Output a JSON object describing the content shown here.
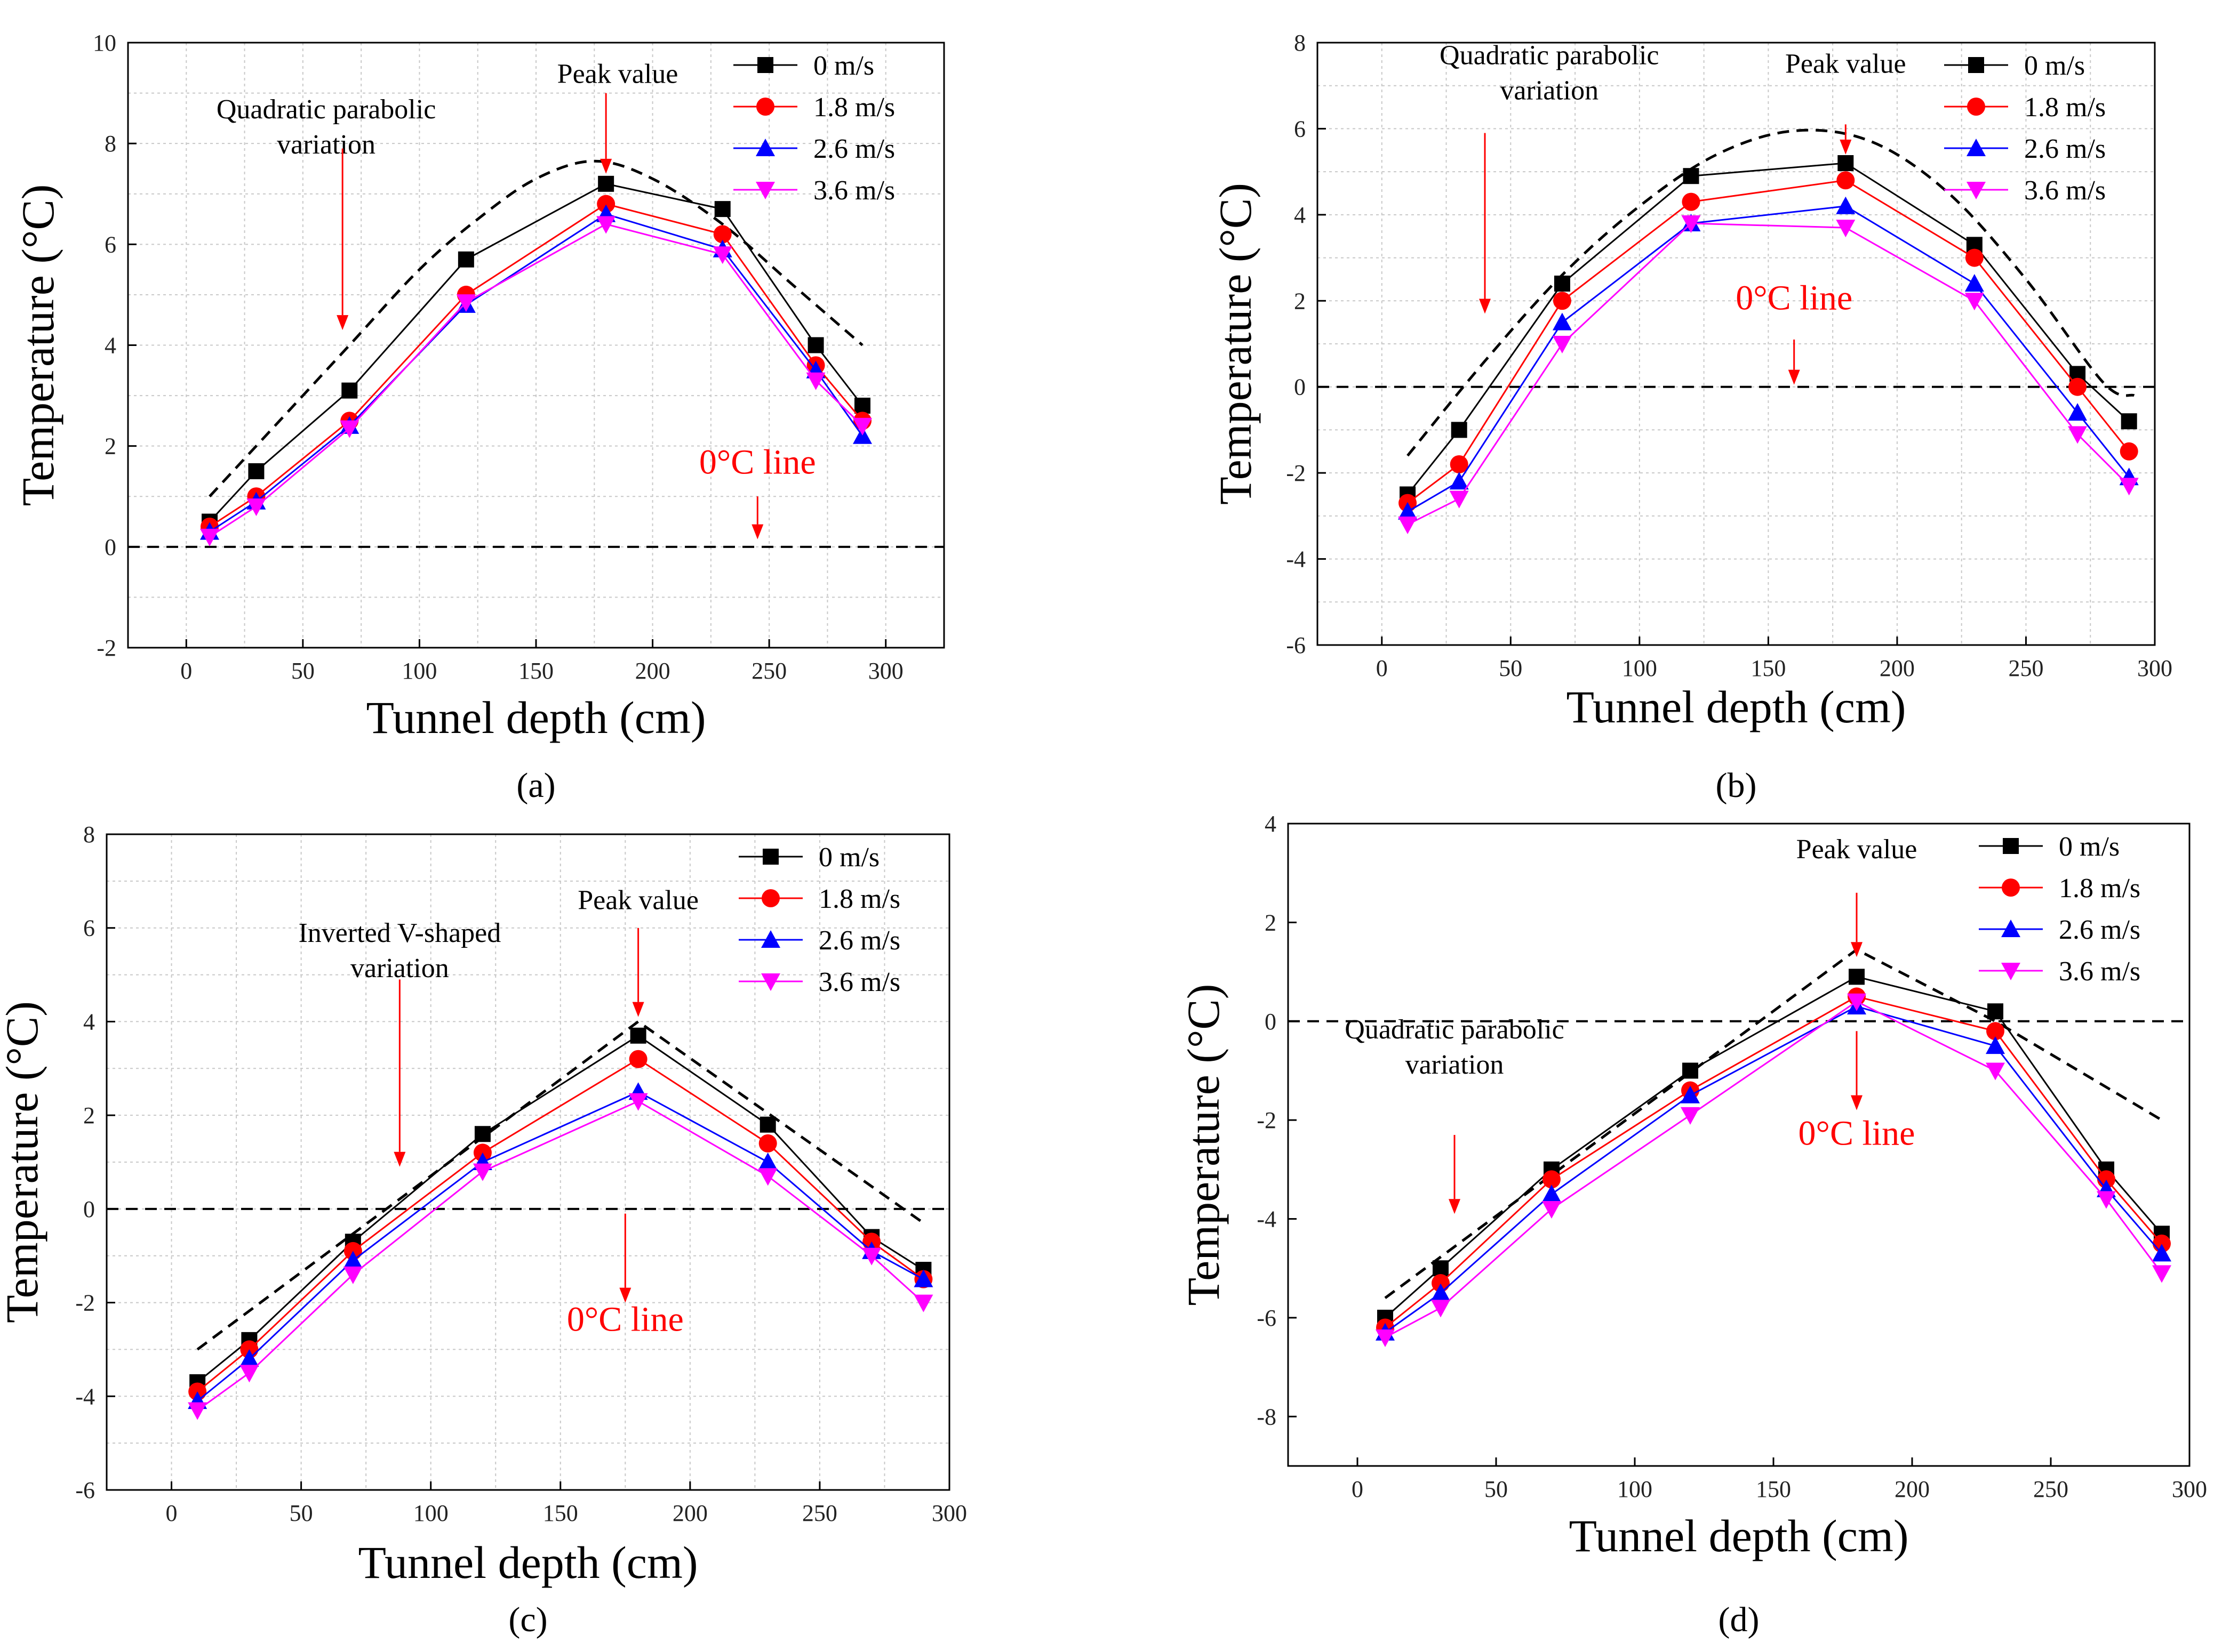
{
  "figure": {
    "legend_labels": [
      "0  m/s",
      "1.8 m/s",
      "2.6 m/s",
      "3.6 m/s"
    ],
    "colors": {
      "series": [
        "#000000",
        "#ff0000",
        "#0000ff",
        "#ff00ff"
      ],
      "annotation_arrow": "#ff0000",
      "zero_label": "#ff0000",
      "grid": "#c8c8c8",
      "envelope": "#000000"
    },
    "marker_shapes": [
      "square",
      "circle",
      "triangle-up",
      "triangle-down"
    ]
  },
  "chart_data": [
    {
      "type": "line",
      "panel_label": "(a)",
      "panel_letter": "a",
      "xlabel": "Tunnel depth (cm)",
      "ylabel": "Temperature (°C)",
      "xlim": [
        -25,
        325
      ],
      "ylim": [
        -2,
        10
      ],
      "xticks": [
        0,
        50,
        100,
        150,
        200,
        250,
        300
      ],
      "yticks": [
        -2,
        0,
        2,
        4,
        6,
        8,
        10
      ],
      "grid": true,
      "legend_position": "top-right",
      "x": [
        10,
        30,
        70,
        120,
        180,
        230,
        270,
        290
      ],
      "series": [
        {
          "name": "0  m/s",
          "values": [
            0.5,
            1.5,
            3.1,
            5.7,
            7.2,
            6.7,
            4.0,
            2.8
          ]
        },
        {
          "name": "1.8 m/s",
          "values": [
            0.4,
            1.0,
            2.5,
            5.0,
            6.8,
            6.2,
            3.6,
            2.5
          ]
        },
        {
          "name": "2.6 m/s",
          "values": [
            0.3,
            0.9,
            2.4,
            4.8,
            6.6,
            5.9,
            3.5,
            2.2
          ]
        },
        {
          "name": "3.6 m/s",
          "values": [
            0.2,
            0.8,
            2.35,
            4.85,
            6.4,
            5.8,
            3.3,
            2.4
          ]
        }
      ],
      "envelope": {
        "x": [
          10,
          40,
          70,
          100,
          125,
          150,
          175,
          200,
          230,
          260,
          290
        ],
        "y": [
          1.0,
          2.5,
          4.0,
          5.5,
          6.5,
          7.3,
          7.65,
          7.3,
          6.4,
          5.2,
          4.0
        ]
      },
      "zero_line": {
        "y": 0,
        "x": [
          -25,
          325
        ]
      },
      "annotations": [
        {
          "lines": [
            "Peak value"
          ],
          "style": "plain",
          "text_x": 185,
          "text_y": 9.2,
          "arrow_from": [
            180,
            9.0
          ],
          "arrow_to": [
            180,
            7.4
          ]
        },
        {
          "lines": [
            "Quadratic parabolic",
            "variation"
          ],
          "style": "plain",
          "text_x": 60,
          "text_y": 8.5,
          "arrow_from": [
            67,
            7.9
          ],
          "arrow_to": [
            67,
            4.3
          ]
        },
        {
          "lines": [
            "0°C line"
          ],
          "style": "red",
          "text_x": 245,
          "text_y": 1.45,
          "arrow_from": [
            245,
            1.0
          ],
          "arrow_to": [
            245,
            0.15
          ]
        }
      ]
    },
    {
      "type": "line",
      "panel_label": "(b)",
      "panel_letter": "b",
      "xlabel": "Tunnel depth (cm)",
      "ylabel": "Temperature (°C)",
      "xlim": [
        -25,
        300
      ],
      "ylim": [
        -6,
        8
      ],
      "xticks": [
        0,
        50,
        100,
        150,
        200,
        250,
        300
      ],
      "xtick_labels": [
        "0",
        "50",
        "100",
        "150",
        "200",
        "250",
        "300"
      ],
      "yticks": [
        -6,
        -4,
        -2,
        0,
        2,
        4,
        6,
        8
      ],
      "grid": true,
      "legend_position": "top-right",
      "x": [
        10,
        30,
        70,
        120,
        180,
        230,
        270,
        290
      ],
      "series": [
        {
          "name": "0  m/s",
          "values": [
            -2.5,
            -1.0,
            2.4,
            4.9,
            5.2,
            3.3,
            0.3,
            -0.8
          ]
        },
        {
          "name": "1.8 m/s",
          "values": [
            -2.7,
            -1.8,
            2.0,
            4.3,
            4.8,
            3.0,
            0.0,
            -1.5
          ]
        },
        {
          "name": "2.6 m/s",
          "values": [
            -2.9,
            -2.2,
            1.5,
            3.8,
            4.2,
            2.4,
            -0.6,
            -2.1
          ]
        },
        {
          "name": "3.6 m/s",
          "values": [
            -3.2,
            -2.6,
            1.0,
            3.8,
            3.7,
            2.0,
            -1.1,
            -2.3
          ]
        }
      ],
      "envelope": {
        "x": [
          10,
          40,
          70,
          100,
          130,
          160,
          190,
          220,
          250,
          280,
          292
        ],
        "y": [
          -1.6,
          0.6,
          2.6,
          4.2,
          5.4,
          5.95,
          5.7,
          4.5,
          2.5,
          0.1,
          -0.2
        ]
      },
      "zero_line": {
        "y": 0,
        "x": [
          -25,
          300
        ]
      },
      "annotations": [
        {
          "lines": [
            "Peak value"
          ],
          "style": "plain",
          "text_x": 180,
          "text_y": 7.3,
          "arrow_from": [
            180,
            6.1
          ],
          "arrow_to": [
            180,
            5.4
          ]
        },
        {
          "lines": [
            "Quadratic parabolic",
            "variation"
          ],
          "style": "plain",
          "text_x": 65,
          "text_y": 7.5,
          "arrow_from": [
            40,
            5.9
          ],
          "arrow_to": [
            40,
            1.7
          ]
        },
        {
          "lines": [
            "0°C line"
          ],
          "style": "red",
          "text_x": 160,
          "text_y": 1.8,
          "arrow_from": [
            160,
            1.1
          ],
          "arrow_to": [
            160,
            0.05
          ]
        }
      ]
    },
    {
      "type": "line",
      "panel_label": "(c)",
      "panel_letter": "c",
      "xlabel": "Tunnel depth (cm)",
      "ylabel": "Temperature (°C)",
      "xlim": [
        -25,
        300
      ],
      "ylim": [
        -6,
        8
      ],
      "xticks": [
        0,
        50,
        100,
        150,
        200,
        250,
        300
      ],
      "yticks": [
        -6,
        -4,
        -2,
        0,
        2,
        4,
        6,
        8
      ],
      "grid": true,
      "legend_position": "top-right",
      "x": [
        10,
        30,
        70,
        120,
        180,
        230,
        270,
        290
      ],
      "series": [
        {
          "name": "0  m/s",
          "values": [
            -3.7,
            -2.8,
            -0.7,
            1.6,
            3.7,
            1.8,
            -0.6,
            -1.3
          ]
        },
        {
          "name": "1.8 m/s",
          "values": [
            -3.9,
            -3.0,
            -0.9,
            1.2,
            3.2,
            1.4,
            -0.7,
            -1.5
          ]
        },
        {
          "name": "2.6 m/s",
          "values": [
            -4.1,
            -3.2,
            -1.1,
            1.0,
            2.5,
            1.0,
            -0.9,
            -1.5
          ]
        },
        {
          "name": "3.6 m/s",
          "values": [
            -4.3,
            -3.5,
            -1.4,
            0.8,
            2.3,
            0.7,
            -1.0,
            -2.0
          ]
        }
      ],
      "envelope": {
        "x": [
          10,
          180,
          290
        ],
        "y": [
          -3.0,
          4.0,
          -0.3
        ]
      },
      "zero_line": {
        "y": 0,
        "x": [
          -25,
          300
        ]
      },
      "annotations": [
        {
          "lines": [
            "Peak value"
          ],
          "style": "plain",
          "text_x": 180,
          "text_y": 6.4,
          "arrow_from": [
            180,
            6.0
          ],
          "arrow_to": [
            180,
            4.1
          ]
        },
        {
          "lines": [
            "Inverted V-shaped",
            "variation"
          ],
          "style": "plain",
          "text_x": 88,
          "text_y": 5.7,
          "arrow_from": [
            88,
            4.9
          ],
          "arrow_to": [
            88,
            0.9
          ]
        },
        {
          "lines": [
            "0°C line"
          ],
          "style": "red",
          "text_x": 175,
          "text_y": -2.6,
          "arrow_from": [
            175,
            -0.1
          ],
          "arrow_to": [
            175,
            -2.0
          ]
        }
      ]
    },
    {
      "type": "line",
      "panel_label": "(d)",
      "panel_letter": "d",
      "xlabel": "Tunnel depth (cm)",
      "ylabel": "Temperature (°C)",
      "xlim": [
        -25,
        300
      ],
      "ylim": [
        -9,
        4
      ],
      "xticks": [
        0,
        50,
        100,
        150,
        200,
        250,
        300
      ],
      "yticks": [
        -8,
        -6,
        -4,
        -2,
        0,
        2,
        4
      ],
      "grid": false,
      "legend_position": "top-right",
      "x": [
        10,
        30,
        70,
        120,
        180,
        230,
        270,
        290
      ],
      "series": [
        {
          "name": "0  m/s",
          "values": [
            -6.0,
            -5.0,
            -3.0,
            -1.0,
            0.9,
            0.2,
            -3.0,
            -4.3
          ]
        },
        {
          "name": "1.8 m/s",
          "values": [
            -6.2,
            -5.3,
            -3.2,
            -1.4,
            0.5,
            -0.2,
            -3.2,
            -4.5
          ]
        },
        {
          "name": "2.6 m/s",
          "values": [
            -6.3,
            -5.5,
            -3.5,
            -1.5,
            0.3,
            -0.5,
            -3.4,
            -4.7
          ]
        },
        {
          "name": "3.6 m/s",
          "values": [
            -6.4,
            -5.8,
            -3.8,
            -1.9,
            0.4,
            -1.0,
            -3.6,
            -5.1
          ]
        }
      ],
      "envelope": {
        "x": [
          10,
          180,
          230,
          290
        ],
        "y": [
          -5.6,
          1.45,
          0.0,
          -2.0
        ]
      },
      "zero_line": {
        "y": 0,
        "x": [
          -25,
          300
        ]
      },
      "annotations": [
        {
          "lines": [
            "Peak value"
          ],
          "style": "plain",
          "text_x": 180,
          "text_y": 3.3,
          "arrow_from": [
            180,
            2.6
          ],
          "arrow_to": [
            180,
            1.3
          ]
        },
        {
          "lines": [
            "Quadratic parabolic",
            "variation"
          ],
          "style": "plain",
          "text_x": 35,
          "text_y": -0.35,
          "arrow_from": [
            35,
            -2.3
          ],
          "arrow_to": [
            35,
            -3.9
          ]
        },
        {
          "lines": [
            "0°C line"
          ],
          "style": "red",
          "text_x": 180,
          "text_y": -2.5,
          "arrow_from": [
            180,
            -0.2
          ],
          "arrow_to": [
            180,
            -1.8
          ]
        }
      ]
    }
  ]
}
